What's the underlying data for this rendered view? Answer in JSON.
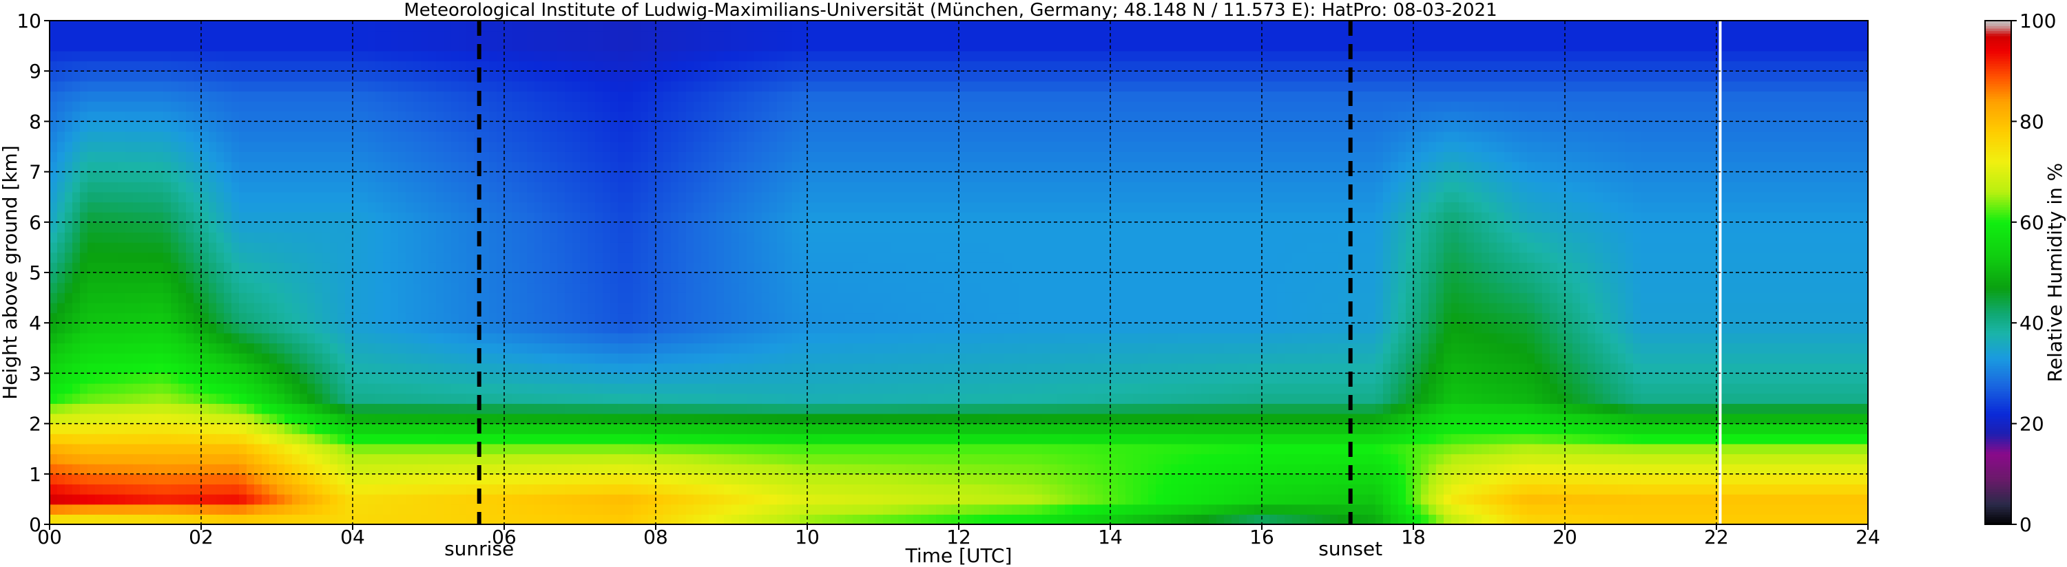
{
  "chart_data": {
    "type": "heatmap",
    "title": "Meteorological Institute of Ludwig-Maximilians-Universität (München, Germany; 48.148 N / 11.573 E):    HatPro: 08-03-2021",
    "xlabel": "Time [UTC]",
    "ylabel": "Height above ground [km]",
    "colorbar_label": "Relative Humidity in %",
    "xlim": [
      0,
      24
    ],
    "ylim": [
      0,
      10
    ],
    "x_ticks": [
      "00",
      "02",
      "04",
      "06",
      "08",
      "10",
      "12",
      "14",
      "16",
      "18",
      "20",
      "22",
      "24"
    ],
    "y_ticks": [
      "0",
      "1",
      "2",
      "3",
      "4",
      "5",
      "6",
      "7",
      "8",
      "9",
      "10"
    ],
    "colorbar_ticks": [
      "0",
      "20",
      "40",
      "60",
      "80",
      "100"
    ],
    "colorbar_range": [
      0,
      100
    ],
    "grid": true,
    "annotations": [
      {
        "label": "sunrise",
        "x": 5.67,
        "style": "dashed-vertical"
      },
      {
        "label": "sunset",
        "x": 17.17,
        "style": "dashed-vertical"
      }
    ],
    "data_gap": {
      "x": 22.05,
      "color": "#ffffff"
    },
    "colormap": [
      {
        "v": 0,
        "c": "#000000"
      },
      {
        "v": 4,
        "c": "#2a2a48"
      },
      {
        "v": 9,
        "c": "#6a1a6a"
      },
      {
        "v": 14,
        "c": "#8a0a8a"
      },
      {
        "v": 18,
        "c": "#1e1eb0"
      },
      {
        "v": 22,
        "c": "#0a2ad8"
      },
      {
        "v": 28,
        "c": "#1a6ae0"
      },
      {
        "v": 33,
        "c": "#1a9ae0"
      },
      {
        "v": 38,
        "c": "#1ab4a8"
      },
      {
        "v": 42,
        "c": "#10a870"
      },
      {
        "v": 47,
        "c": "#0aa010"
      },
      {
        "v": 53,
        "c": "#10cc10"
      },
      {
        "v": 60,
        "c": "#10ee10"
      },
      {
        "v": 66,
        "c": "#b8f010"
      },
      {
        "v": 72,
        "c": "#f0f010"
      },
      {
        "v": 78,
        "c": "#ffcc00"
      },
      {
        "v": 84,
        "c": "#ffa000"
      },
      {
        "v": 89,
        "c": "#ff5000"
      },
      {
        "v": 94,
        "c": "#ee0000"
      },
      {
        "v": 97,
        "c": "#d00000"
      },
      {
        "v": 99,
        "c": "#c8a0a0"
      },
      {
        "v": 100,
        "c": "#c0c0c0"
      }
    ],
    "rh_profile_keypoints": [
      {
        "time": 0.0,
        "levels_km": [
          0,
          0.5,
          1.5,
          2.5,
          4,
          6,
          8.5,
          9.5
        ],
        "rh": [
          70,
          96,
          82,
          60,
          47,
          35,
          28,
          22
        ]
      },
      {
        "time": 0.5,
        "levels_km": [
          0,
          0.5,
          1.5,
          2.5,
          4,
          6,
          8.5,
          9.5
        ],
        "rh": [
          70,
          94,
          80,
          63,
          52,
          45,
          30,
          22
        ]
      },
      {
        "time": 1.5,
        "levels_km": [
          0,
          0.5,
          1.5,
          2.5,
          4,
          6,
          8.5,
          9.5
        ],
        "rh": [
          72,
          92,
          80,
          65,
          53,
          44,
          30,
          22
        ]
      },
      {
        "time": 2.5,
        "levels_km": [
          0,
          0.5,
          1.5,
          2.5,
          4,
          6,
          8.5,
          9.5
        ],
        "rh": [
          75,
          93,
          80,
          60,
          42,
          34,
          28,
          22
        ]
      },
      {
        "time": 4.0,
        "levels_km": [
          0,
          0.5,
          1.5,
          2.5,
          4,
          6,
          8.5,
          9.5
        ],
        "rh": [
          76,
          75,
          64,
          40,
          34,
          34,
          28,
          22
        ]
      },
      {
        "time": 7.6,
        "levels_km": [
          0,
          0.5,
          1.5,
          2.5,
          4,
          6,
          8.5,
          9.5
        ],
        "rh": [
          78,
          80,
          64,
          38,
          26,
          25,
          22,
          20
        ]
      },
      {
        "time": 10.0,
        "levels_km": [
          0,
          0.5,
          1.5,
          2.5,
          4,
          6,
          8.5,
          9.5
        ],
        "rh": [
          64,
          70,
          62,
          37,
          32,
          33,
          28,
          22
        ]
      },
      {
        "time": 13.0,
        "levels_km": [
          0,
          0.5,
          1.5,
          2.5,
          4,
          6,
          8.5,
          9.5
        ],
        "rh": [
          57,
          66,
          62,
          38,
          33,
          33,
          28,
          22
        ]
      },
      {
        "time": 16.0,
        "levels_km": [
          0,
          0.5,
          1.5,
          2.5,
          4,
          6,
          8.5,
          9.5
        ],
        "rh": [
          40,
          55,
          60,
          40,
          33,
          33,
          28,
          22
        ]
      },
      {
        "time": 17.5,
        "levels_km": [
          0,
          0.5,
          1.5,
          2.5,
          4,
          6,
          8.5,
          9.5
        ],
        "rh": [
          48,
          52,
          60,
          40,
          34,
          33,
          28,
          22
        ]
      },
      {
        "time": 18.5,
        "levels_km": [
          0,
          0.5,
          1.5,
          2.5,
          4,
          6,
          8.5,
          9.5
        ],
        "rh": [
          66,
          73,
          64,
          52,
          47,
          42,
          28,
          22
        ]
      },
      {
        "time": 19.5,
        "levels_km": [
          0,
          0.5,
          1.5,
          2.5,
          4,
          6,
          8.5,
          9.5
        ],
        "rh": [
          76,
          80,
          66,
          50,
          45,
          36,
          28,
          22
        ]
      },
      {
        "time": 21.0,
        "levels_km": [
          0,
          0.5,
          1.5,
          2.5,
          4,
          6,
          8.5,
          9.5
        ],
        "rh": [
          78,
          79,
          65,
          40,
          34,
          33,
          28,
          22
        ]
      },
      {
        "time": 24.0,
        "levels_km": [
          0,
          0.5,
          1.5,
          2.5,
          4,
          6,
          8.5,
          9.5
        ],
        "rh": [
          78,
          79,
          65,
          40,
          34,
          33,
          28,
          22
        ]
      }
    ]
  }
}
